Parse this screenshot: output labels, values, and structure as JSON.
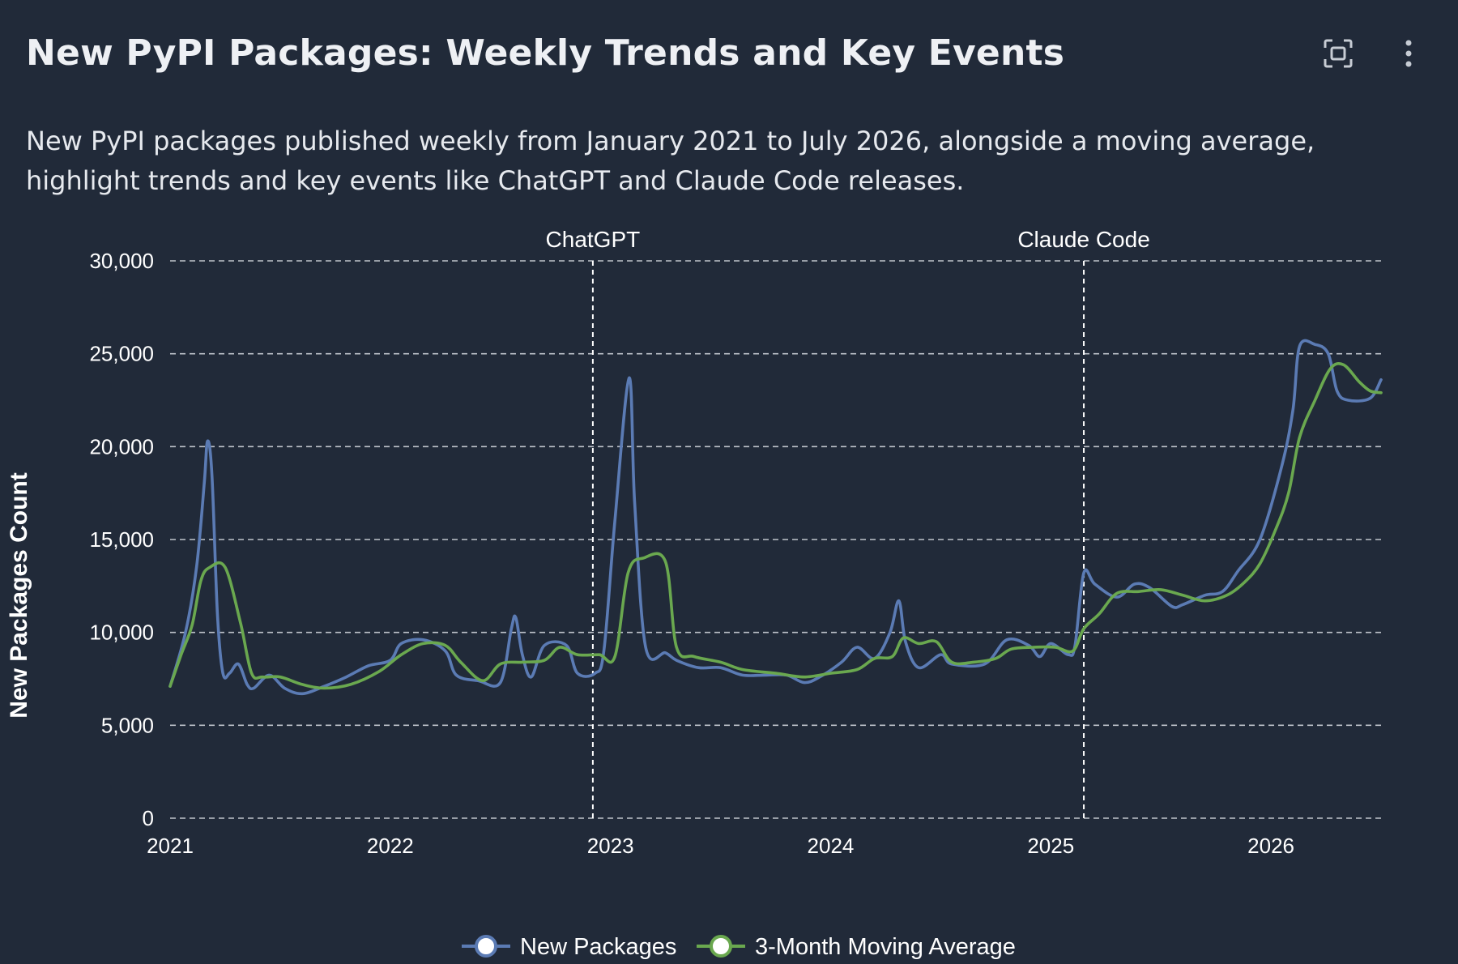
{
  "header": {
    "title": "New PyPI Packages: Weekly Trends and Key Events",
    "subtitle": "New PyPI packages published weekly from January 2021 to July 2026, alongside a moving average, highlight trends and key events like ChatGPT and Claude Code releases.",
    "fullscreen_icon": "fullscreen-icon",
    "menu_icon": "more-vertical-icon"
  },
  "colors": {
    "background": "#212a39",
    "new_packages": "#5b7bb4",
    "moving_average": "#6aa84f",
    "grid": "#c0c4cc"
  },
  "chart_data": {
    "type": "line",
    "title": "New PyPI Packages: Weekly Trends and Key Events",
    "xlabel": "",
    "ylabel": "New Packages Count",
    "xlim": [
      2021.0,
      2026.5
    ],
    "ylim": [
      0,
      30000
    ],
    "x_ticks": [
      2021,
      2022,
      2023,
      2024,
      2025,
      2026
    ],
    "x_tick_labels": [
      "2021",
      "2022",
      "2023",
      "2024",
      "2025",
      "2026"
    ],
    "y_ticks": [
      0,
      5000,
      10000,
      15000,
      20000,
      25000,
      30000
    ],
    "y_tick_labels": [
      "0",
      "5,000",
      "10,000",
      "15,000",
      "20,000",
      "25,000",
      "30,000"
    ],
    "grid": true,
    "legend_position": "bottom",
    "events": [
      {
        "label": "ChatGPT",
        "x": 2022.92
      },
      {
        "label": "Claude Code",
        "x": 2025.15
      }
    ],
    "series": [
      {
        "name": "New Packages",
        "color": "#5b7bb4",
        "points": [
          [
            2021.0,
            7100
          ],
          [
            2021.07,
            10000
          ],
          [
            2021.12,
            13500
          ],
          [
            2021.155,
            18000
          ],
          [
            2021.17,
            20300
          ],
          [
            2021.19,
            18500
          ],
          [
            2021.215,
            11000
          ],
          [
            2021.24,
            7800
          ],
          [
            2021.27,
            7800
          ],
          [
            2021.31,
            8300
          ],
          [
            2021.35,
            7200
          ],
          [
            2021.38,
            7000
          ],
          [
            2021.45,
            7700
          ],
          [
            2021.52,
            7000
          ],
          [
            2021.6,
            6700
          ],
          [
            2021.7,
            7100
          ],
          [
            2021.8,
            7600
          ],
          [
            2021.9,
            8200
          ],
          [
            2022.0,
            8500
          ],
          [
            2022.05,
            9400
          ],
          [
            2022.15,
            9600
          ],
          [
            2022.25,
            9000
          ],
          [
            2022.3,
            7700
          ],
          [
            2022.4,
            7400
          ],
          [
            2022.5,
            7300
          ],
          [
            2022.55,
            10200
          ],
          [
            2022.57,
            10800
          ],
          [
            2022.6,
            8800
          ],
          [
            2022.64,
            7600
          ],
          [
            2022.7,
            9300
          ],
          [
            2022.8,
            9300
          ],
          [
            2022.85,
            7800
          ],
          [
            2022.93,
            7800
          ],
          [
            2022.97,
            9000
          ],
          [
            2023.02,
            16000
          ],
          [
            2023.085,
            23700
          ],
          [
            2023.11,
            17000
          ],
          [
            2023.16,
            9200
          ],
          [
            2023.25,
            8900
          ],
          [
            2023.3,
            8500
          ],
          [
            2023.4,
            8100
          ],
          [
            2023.5,
            8100
          ],
          [
            2023.6,
            7700
          ],
          [
            2023.7,
            7700
          ],
          [
            2023.8,
            7700
          ],
          [
            2023.88,
            7300
          ],
          [
            2023.95,
            7600
          ],
          [
            2024.05,
            8400
          ],
          [
            2024.12,
            9200
          ],
          [
            2024.2,
            8600
          ],
          [
            2024.27,
            10000
          ],
          [
            2024.31,
            11700
          ],
          [
            2024.34,
            9500
          ],
          [
            2024.4,
            8100
          ],
          [
            2024.5,
            8800
          ],
          [
            2024.55,
            8300
          ],
          [
            2024.7,
            8300
          ],
          [
            2024.8,
            9600
          ],
          [
            2024.9,
            9300
          ],
          [
            2024.95,
            8700
          ],
          [
            2025.0,
            9400
          ],
          [
            2025.08,
            8800
          ],
          [
            2025.11,
            9300
          ],
          [
            2025.15,
            13200
          ],
          [
            2025.2,
            12600
          ],
          [
            2025.3,
            11900
          ],
          [
            2025.38,
            12600
          ],
          [
            2025.45,
            12400
          ],
          [
            2025.55,
            11400
          ],
          [
            2025.6,
            11500
          ],
          [
            2025.7,
            12000
          ],
          [
            2025.78,
            12200
          ],
          [
            2025.85,
            13300
          ],
          [
            2025.95,
            15000
          ],
          [
            2026.05,
            19000
          ],
          [
            2026.1,
            22000
          ],
          [
            2026.13,
            25400
          ],
          [
            2026.2,
            25500
          ],
          [
            2026.26,
            25000
          ],
          [
            2026.3,
            23000
          ],
          [
            2026.35,
            22500
          ],
          [
            2026.45,
            22600
          ],
          [
            2026.5,
            23600
          ]
        ]
      },
      {
        "name": "3-Month Moving Average",
        "color": "#6aa84f",
        "points": [
          [
            2021.0,
            7100
          ],
          [
            2021.05,
            8800
          ],
          [
            2021.1,
            10400
          ],
          [
            2021.14,
            12800
          ],
          [
            2021.18,
            13500
          ],
          [
            2021.25,
            13500
          ],
          [
            2021.32,
            10500
          ],
          [
            2021.37,
            7800
          ],
          [
            2021.42,
            7600
          ],
          [
            2021.5,
            7600
          ],
          [
            2021.6,
            7200
          ],
          [
            2021.7,
            7000
          ],
          [
            2021.82,
            7200
          ],
          [
            2021.95,
            7900
          ],
          [
            2022.05,
            8800
          ],
          [
            2022.15,
            9400
          ],
          [
            2022.25,
            9300
          ],
          [
            2022.32,
            8400
          ],
          [
            2022.42,
            7400
          ],
          [
            2022.5,
            8300
          ],
          [
            2022.6,
            8400
          ],
          [
            2022.7,
            8500
          ],
          [
            2022.77,
            9200
          ],
          [
            2022.85,
            8800
          ],
          [
            2022.95,
            8800
          ],
          [
            2023.02,
            8700
          ],
          [
            2023.08,
            13200
          ],
          [
            2023.15,
            14000
          ],
          [
            2023.25,
            13800
          ],
          [
            2023.3,
            9200
          ],
          [
            2023.38,
            8700
          ],
          [
            2023.5,
            8400
          ],
          [
            2023.6,
            8000
          ],
          [
            2023.75,
            7800
          ],
          [
            2023.88,
            7600
          ],
          [
            2024.0,
            7800
          ],
          [
            2024.12,
            8000
          ],
          [
            2024.2,
            8600
          ],
          [
            2024.28,
            8700
          ],
          [
            2024.33,
            9700
          ],
          [
            2024.4,
            9400
          ],
          [
            2024.48,
            9500
          ],
          [
            2024.55,
            8400
          ],
          [
            2024.65,
            8400
          ],
          [
            2024.75,
            8600
          ],
          [
            2024.82,
            9100
          ],
          [
            2024.92,
            9200
          ],
          [
            2025.02,
            9200
          ],
          [
            2025.1,
            9000
          ],
          [
            2025.15,
            10200
          ],
          [
            2025.22,
            11000
          ],
          [
            2025.3,
            12100
          ],
          [
            2025.4,
            12200
          ],
          [
            2025.5,
            12300
          ],
          [
            2025.6,
            12000
          ],
          [
            2025.7,
            11700
          ],
          [
            2025.8,
            12000
          ],
          [
            2025.88,
            12700
          ],
          [
            2025.95,
            13700
          ],
          [
            2026.02,
            15500
          ],
          [
            2026.08,
            17500
          ],
          [
            2026.13,
            20500
          ],
          [
            2026.2,
            22500
          ],
          [
            2026.27,
            24200
          ],
          [
            2026.33,
            24400
          ],
          [
            2026.4,
            23500
          ],
          [
            2026.45,
            23000
          ],
          [
            2026.5,
            22900
          ]
        ]
      }
    ]
  }
}
